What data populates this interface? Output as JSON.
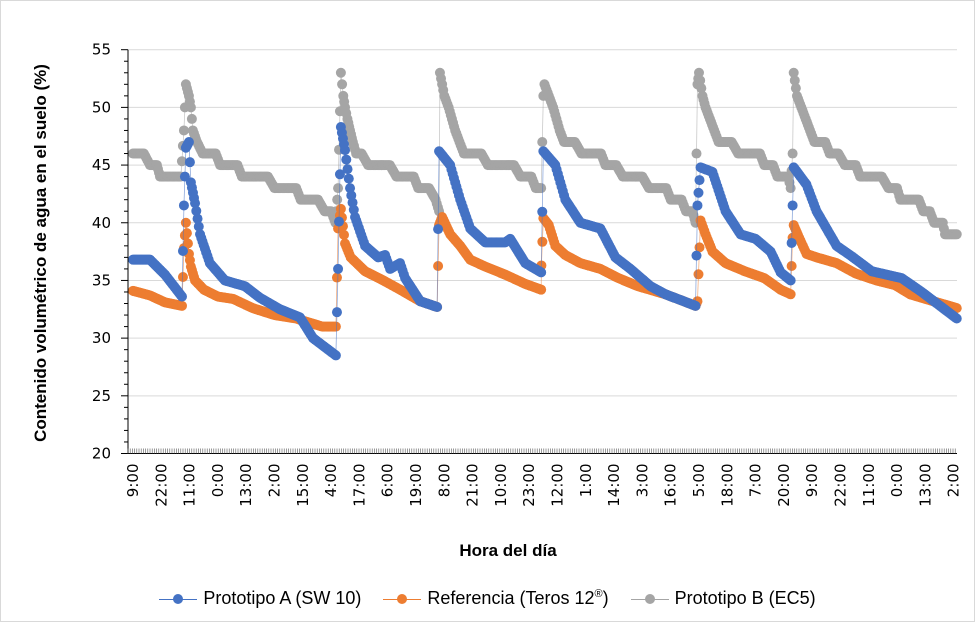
{
  "chart_data": {
    "type": "line",
    "title": "",
    "xlabel": "Hora del día",
    "ylabel": "Contenido volumétrico de agua en el suelo (%)",
    "ylim": [
      20,
      55
    ],
    "yticks": [
      20,
      25,
      30,
      35,
      40,
      45,
      50,
      55
    ],
    "x_units": "hours since start (9:00)",
    "xlim": [
      0,
      380
    ],
    "xtick_labels": [
      "9:00",
      "22:00",
      "11:00",
      "0:00",
      "13:00",
      "2:00",
      "15:00",
      "4:00",
      "17:00",
      "6:00",
      "19:00",
      "8:00",
      "21:00",
      "10:00",
      "23:00",
      "12:00",
      "1:00",
      "14:00",
      "3:00",
      "16:00",
      "5:00",
      "18:00",
      "7:00",
      "20:00",
      "9:00",
      "22:00",
      "11:00",
      "0:00",
      "13:00",
      "2:00"
    ],
    "xtick_interval_hours": 13,
    "grid": "horizontal",
    "legend_position": "bottom",
    "series": [
      {
        "name": "Prototipo A (SW 10)",
        "color": "#4472C4",
        "points": [
          [
            0,
            36.8
          ],
          [
            7.8,
            36.8
          ],
          [
            14.7,
            35.5
          ],
          [
            22.5,
            33.6
          ],
          [
            23.4,
            41.5
          ],
          [
            24.3,
            46.5
          ],
          [
            25.7,
            47
          ],
          [
            26.6,
            43.5
          ],
          [
            28.5,
            41.7
          ],
          [
            30.8,
            39
          ],
          [
            35.3,
            36.5
          ],
          [
            42.2,
            35
          ],
          [
            51.4,
            34.5
          ],
          [
            58.3,
            33.5
          ],
          [
            67.5,
            32.5
          ],
          [
            76.7,
            31.8
          ],
          [
            82.7,
            30
          ],
          [
            93.2,
            28.5
          ],
          [
            94.2,
            36
          ],
          [
            95.5,
            48.3
          ],
          [
            97.4,
            46.3
          ],
          [
            99.7,
            43
          ],
          [
            102,
            40.5
          ],
          [
            106.6,
            38
          ],
          [
            112.6,
            37
          ],
          [
            115.8,
            37.2
          ],
          [
            118.1,
            36
          ],
          [
            122.7,
            36.5
          ],
          [
            125,
            35.2
          ],
          [
            131.9,
            33.2
          ],
          [
            139.7,
            32.7
          ],
          [
            140.6,
            46.2
          ],
          [
            145.7,
            45
          ],
          [
            150.3,
            42
          ],
          [
            154.9,
            39.5
          ],
          [
            161.8,
            38.3
          ],
          [
            171,
            38.3
          ],
          [
            173.3,
            38.6
          ],
          [
            180.2,
            36.5
          ],
          [
            187.5,
            35.7
          ],
          [
            188.5,
            46.2
          ],
          [
            194,
            45
          ],
          [
            198.6,
            42
          ],
          [
            205.5,
            40
          ],
          [
            214.7,
            39.5
          ],
          [
            221.6,
            37
          ],
          [
            228.5,
            36
          ],
          [
            237.7,
            34.5
          ],
          [
            244.6,
            33.8
          ],
          [
            258.4,
            32.8
          ],
          [
            259.3,
            41.5
          ],
          [
            260.7,
            44.8
          ],
          [
            266.2,
            44.4
          ],
          [
            272.2,
            41
          ],
          [
            279.1,
            39
          ],
          [
            286,
            38.6
          ],
          [
            292.9,
            37.5
          ],
          [
            297.5,
            35.7
          ],
          [
            302.1,
            35
          ],
          [
            303,
            41.5
          ],
          [
            303.5,
            44.8
          ],
          [
            309.4,
            43.3
          ],
          [
            314,
            41
          ],
          [
            323.2,
            38
          ],
          [
            330.1,
            37.1
          ],
          [
            339.3,
            35.8
          ],
          [
            353.1,
            35.2
          ],
          [
            362.3,
            34
          ],
          [
            378.4,
            31.7
          ]
        ]
      },
      {
        "name": "Referencia (Teros 12®)",
        "color": "#ED7D31",
        "points": [
          [
            0,
            34.1
          ],
          [
            7.8,
            33.7
          ],
          [
            14.7,
            33.1
          ],
          [
            22.5,
            32.8
          ],
          [
            23.4,
            37.8
          ],
          [
            24.3,
            40
          ],
          [
            25.7,
            37.3
          ],
          [
            26.6,
            36.2
          ],
          [
            28.5,
            35
          ],
          [
            32.6,
            34.2
          ],
          [
            39,
            33.6
          ],
          [
            46,
            33.4
          ],
          [
            55,
            32.6
          ],
          [
            65,
            32
          ],
          [
            75,
            31.7
          ],
          [
            80,
            31.4
          ],
          [
            87,
            31
          ],
          [
            93.2,
            31
          ],
          [
            94.2,
            39.5
          ],
          [
            95.5,
            41.2
          ],
          [
            97.4,
            38.2
          ],
          [
            100,
            37
          ],
          [
            106.6,
            35.8
          ],
          [
            115,
            35
          ],
          [
            122.7,
            34.2
          ],
          [
            131.9,
            33.2
          ],
          [
            139.7,
            32.7
          ],
          [
            140.6,
            39.8
          ],
          [
            142,
            40.5
          ],
          [
            145.7,
            39
          ],
          [
            150.3,
            38
          ],
          [
            154.9,
            36.8
          ],
          [
            161.8,
            36.2
          ],
          [
            171,
            35.5
          ],
          [
            180.2,
            34.7
          ],
          [
            187.5,
            34.2
          ],
          [
            187.6,
            36.3
          ],
          [
            188.5,
            40.4
          ],
          [
            191,
            39.8
          ],
          [
            194,
            38
          ],
          [
            198.6,
            37.2
          ],
          [
            205.5,
            36.5
          ],
          [
            214.7,
            36
          ],
          [
            223,
            35.2
          ],
          [
            232,
            34.5
          ],
          [
            244.6,
            33.8
          ],
          [
            258.4,
            32.8
          ],
          [
            259.3,
            33.2
          ],
          [
            260.7,
            40.2
          ],
          [
            263,
            39
          ],
          [
            266.2,
            37.5
          ],
          [
            272.2,
            36.5
          ],
          [
            281,
            35.8
          ],
          [
            290,
            35.2
          ],
          [
            297.5,
            34.2
          ],
          [
            302.1,
            33.8
          ],
          [
            303,
            38.7
          ],
          [
            303.5,
            39.8
          ],
          [
            306,
            38.7
          ],
          [
            309.4,
            37.3
          ],
          [
            314,
            37
          ],
          [
            323.2,
            36.5
          ],
          [
            332,
            35.6
          ],
          [
            341.5,
            35
          ],
          [
            350,
            34.6
          ],
          [
            357,
            33.8
          ],
          [
            364,
            33.4
          ],
          [
            378.4,
            32.6
          ]
        ]
      },
      {
        "name": "Prototipo B (EC5)",
        "color": "#A5A5A5",
        "points": [
          [
            0,
            46
          ],
          [
            5,
            46
          ],
          [
            7.8,
            45
          ],
          [
            11,
            45
          ],
          [
            12.4,
            44
          ],
          [
            22,
            44
          ],
          [
            23.4,
            48
          ],
          [
            24.3,
            52
          ],
          [
            25.7,
            51
          ],
          [
            26.6,
            50
          ],
          [
            27.5,
            48
          ],
          [
            29.4,
            47
          ],
          [
            32,
            46
          ],
          [
            38,
            46
          ],
          [
            40,
            45
          ],
          [
            48,
            45
          ],
          [
            50,
            44
          ],
          [
            62,
            44
          ],
          [
            65,
            43
          ],
          [
            75,
            43
          ],
          [
            77,
            42
          ],
          [
            85,
            42
          ],
          [
            88,
            41
          ],
          [
            91,
            41
          ],
          [
            93,
            40
          ],
          [
            94.2,
            43
          ],
          [
            95.5,
            53
          ],
          [
            96.6,
            51
          ],
          [
            97.4,
            50
          ],
          [
            98.5,
            49
          ],
          [
            99.7,
            48
          ],
          [
            101,
            47
          ],
          [
            102.5,
            46
          ],
          [
            105,
            46
          ],
          [
            108,
            45
          ],
          [
            118,
            45
          ],
          [
            121,
            44
          ],
          [
            129,
            44
          ],
          [
            131,
            43
          ],
          [
            136,
            43
          ],
          [
            139,
            42
          ],
          [
            140.6,
            41
          ],
          [
            141,
            53
          ],
          [
            143,
            51
          ],
          [
            145,
            50
          ],
          [
            146.5,
            49
          ],
          [
            148,
            48
          ],
          [
            150,
            47
          ],
          [
            152,
            46
          ],
          [
            160,
            46
          ],
          [
            163,
            45
          ],
          [
            175,
            45
          ],
          [
            178,
            44
          ],
          [
            183,
            44
          ],
          [
            185,
            43
          ],
          [
            187.5,
            43
          ],
          [
            188.5,
            51
          ],
          [
            189,
            52
          ],
          [
            191,
            51
          ],
          [
            193,
            50
          ],
          [
            194.5,
            49
          ],
          [
            196,
            48
          ],
          [
            198,
            47
          ],
          [
            203,
            47
          ],
          [
            206,
            46
          ],
          [
            215,
            46
          ],
          [
            217,
            45
          ],
          [
            222,
            45
          ],
          [
            225,
            44
          ],
          [
            234,
            44
          ],
          [
            237,
            43
          ],
          [
            245,
            43
          ],
          [
            247,
            42
          ],
          [
            252,
            42
          ],
          [
            254,
            41
          ],
          [
            257,
            41
          ],
          [
            258.4,
            40
          ],
          [
            259.3,
            52
          ],
          [
            260,
            53
          ],
          [
            261.6,
            51
          ],
          [
            263,
            50
          ],
          [
            265,
            49
          ],
          [
            267,
            48
          ],
          [
            269,
            47
          ],
          [
            275,
            47
          ],
          [
            278,
            46
          ],
          [
            288,
            46
          ],
          [
            290,
            45
          ],
          [
            294,
            45
          ],
          [
            296,
            44
          ],
          [
            301,
            44
          ],
          [
            302.1,
            43
          ],
          [
            303,
            46
          ],
          [
            303.5,
            53
          ],
          [
            305,
            51
          ],
          [
            307,
            50
          ],
          [
            309,
            49
          ],
          [
            311,
            48
          ],
          [
            313,
            47
          ],
          [
            318,
            47
          ],
          [
            320,
            46
          ],
          [
            324,
            46
          ],
          [
            327,
            45
          ],
          [
            332,
            45
          ],
          [
            334,
            44
          ],
          [
            344,
            44
          ],
          [
            347,
            43
          ],
          [
            351,
            43
          ],
          [
            352.5,
            42
          ],
          [
            361,
            42
          ],
          [
            363,
            41
          ],
          [
            366,
            41
          ],
          [
            368,
            40
          ],
          [
            372,
            40
          ],
          [
            373,
            39
          ],
          [
            378.4,
            39
          ]
        ]
      }
    ]
  },
  "legend": {
    "items": [
      {
        "label": "Prototipo A (SW 10)",
        "color": "#4472C4"
      },
      {
        "label": "Referencia (Teros 12",
        "sup": "®",
        "suffix": ")",
        "color": "#ED7D31"
      },
      {
        "label": "Prototipo B (EC5)",
        "color": "#A5A5A5"
      }
    ]
  }
}
